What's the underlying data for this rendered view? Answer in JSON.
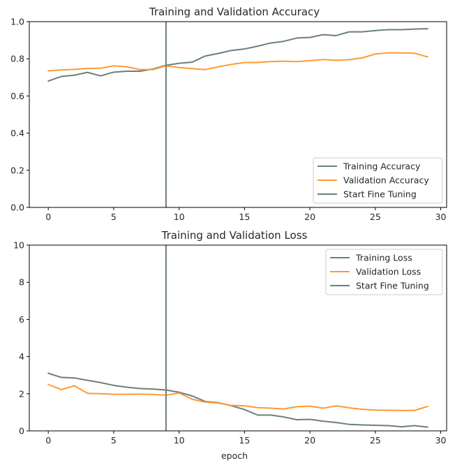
{
  "chart_data": [
    {
      "type": "line",
      "title": "Training and Validation Accuracy",
      "xlabel": "",
      "ylabel": "",
      "xlim": [
        -1.45,
        30.45
      ],
      "ylim": [
        0,
        1.0
      ],
      "xticks": [
        0,
        5,
        10,
        15,
        20,
        25,
        30
      ],
      "yticks": [
        0.0,
        0.2,
        0.4,
        0.6,
        0.8,
        1.0
      ],
      "ytick_format": 1,
      "legend_position": "lower right",
      "x": [
        0,
        1,
        2,
        3,
        4,
        5,
        6,
        7,
        8,
        9,
        10,
        11,
        12,
        13,
        14,
        15,
        16,
        17,
        18,
        19,
        20,
        21,
        22,
        23,
        24,
        25,
        26,
        27,
        28,
        29
      ],
      "series": [
        {
          "name": "Training Accuracy",
          "color": "#6b7f7c",
          "values": [
            0.68,
            0.705,
            0.712,
            0.727,
            0.708,
            0.728,
            0.733,
            0.733,
            0.745,
            0.765,
            0.776,
            0.782,
            0.815,
            0.829,
            0.845,
            0.853,
            0.868,
            0.885,
            0.894,
            0.912,
            0.915,
            0.93,
            0.925,
            0.945,
            0.945,
            0.952,
            0.957,
            0.957,
            0.96,
            0.962
          ]
        },
        {
          "name": "Validation Accuracy",
          "color": "#ff9933",
          "values": [
            0.735,
            0.74,
            0.743,
            0.748,
            0.749,
            0.762,
            0.757,
            0.742,
            0.742,
            0.762,
            0.753,
            0.747,
            0.742,
            0.757,
            0.77,
            0.78,
            0.78,
            0.785,
            0.787,
            0.785,
            0.79,
            0.796,
            0.792,
            0.795,
            0.805,
            0.826,
            0.832,
            0.832,
            0.83,
            0.81
          ]
        }
      ],
      "vline": {
        "name": "Start Fine Tuning",
        "x": 9,
        "color": "#6b7f7c"
      }
    },
    {
      "type": "line",
      "title": "Training and Validation Loss",
      "xlabel": "epoch",
      "ylabel": "",
      "xlim": [
        -1.45,
        30.45
      ],
      "ylim": [
        0,
        10
      ],
      "xticks": [
        0,
        5,
        10,
        15,
        20,
        25,
        30
      ],
      "yticks": [
        0,
        2,
        4,
        6,
        8,
        10
      ],
      "ytick_format": 0,
      "legend_position": "upper right",
      "x": [
        0,
        1,
        2,
        3,
        4,
        5,
        6,
        7,
        8,
        9,
        10,
        11,
        12,
        13,
        14,
        15,
        16,
        17,
        18,
        19,
        20,
        21,
        22,
        23,
        24,
        25,
        26,
        27,
        28,
        29
      ],
      "series": [
        {
          "name": "Training Loss",
          "color": "#6b7f7c",
          "values": [
            3.1,
            2.88,
            2.85,
            2.72,
            2.6,
            2.45,
            2.35,
            2.28,
            2.25,
            2.2,
            2.08,
            1.88,
            1.58,
            1.52,
            1.35,
            1.15,
            0.85,
            0.85,
            0.75,
            0.6,
            0.62,
            0.52,
            0.45,
            0.35,
            0.32,
            0.3,
            0.28,
            0.22,
            0.28,
            0.2
          ]
        },
        {
          "name": "Validation Loss",
          "color": "#ff9933",
          "values": [
            2.5,
            2.22,
            2.43,
            2.02,
            2.0,
            1.97,
            1.97,
            1.98,
            1.96,
            1.92,
            2.04,
            1.7,
            1.55,
            1.5,
            1.37,
            1.35,
            1.25,
            1.22,
            1.18,
            1.3,
            1.33,
            1.22,
            1.35,
            1.24,
            1.16,
            1.12,
            1.11,
            1.1,
            1.1,
            1.32
          ]
        }
      ],
      "vline": {
        "name": "Start Fine Tuning",
        "x": 9,
        "color": "#6b7f7c"
      }
    }
  ]
}
